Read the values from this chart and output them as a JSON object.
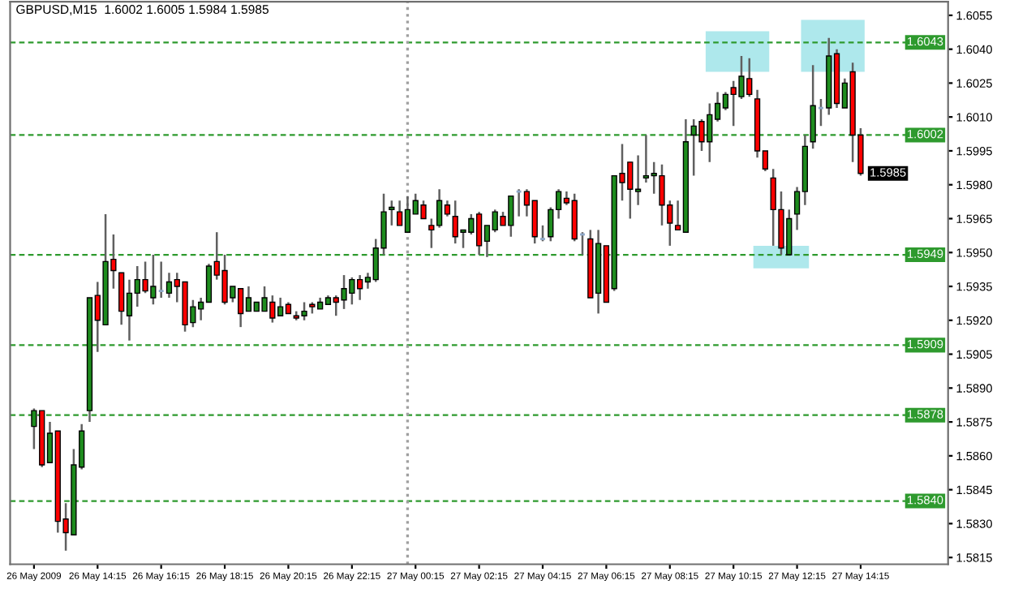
{
  "chart_data": {
    "type": "candlestick",
    "title": "GBPUSD,M15  1.6002 1.6005 1.5984 1.5985",
    "x": [
      "2009-05-26T12:15",
      "2009-05-26T12:30",
      "2009-05-26T12:45",
      "2009-05-26T13:00",
      "2009-05-26T13:15",
      "2009-05-26T13:30",
      "2009-05-26T13:45",
      "2009-05-26T14:00",
      "2009-05-26T14:15",
      "2009-05-26T14:30",
      "2009-05-26T14:45",
      "2009-05-26T15:00",
      "2009-05-26T15:15",
      "2009-05-26T15:30",
      "2009-05-26T15:45",
      "2009-05-26T16:00",
      "2009-05-26T16:15",
      "2009-05-26T16:30",
      "2009-05-26T16:45",
      "2009-05-26T17:00",
      "2009-05-26T17:15",
      "2009-05-26T17:30",
      "2009-05-26T17:45",
      "2009-05-26T18:00",
      "2009-05-26T18:15",
      "2009-05-26T18:30",
      "2009-05-26T18:45",
      "2009-05-26T19:00",
      "2009-05-26T19:15",
      "2009-05-26T19:30",
      "2009-05-26T19:45",
      "2009-05-26T20:00",
      "2009-05-26T20:15",
      "2009-05-26T20:30",
      "2009-05-26T20:45",
      "2009-05-26T21:00",
      "2009-05-26T21:15",
      "2009-05-26T21:30",
      "2009-05-26T21:45",
      "2009-05-26T22:00",
      "2009-05-26T22:15",
      "2009-05-26T22:30",
      "2009-05-26T22:45",
      "2009-05-26T23:00",
      "2009-05-26T23:15",
      "2009-05-26T23:30",
      "2009-05-26T23:45",
      "2009-05-27T00:00",
      "2009-05-27T00:15",
      "2009-05-27T00:30",
      "2009-05-27T00:45",
      "2009-05-27T01:00",
      "2009-05-27T01:15",
      "2009-05-27T01:30",
      "2009-05-27T01:45",
      "2009-05-27T02:00",
      "2009-05-27T02:15",
      "2009-05-27T02:30",
      "2009-05-27T02:45",
      "2009-05-27T03:00",
      "2009-05-27T03:15",
      "2009-05-27T03:30",
      "2009-05-27T03:45",
      "2009-05-27T04:00",
      "2009-05-27T04:15",
      "2009-05-27T04:30",
      "2009-05-27T04:45",
      "2009-05-27T05:00",
      "2009-05-27T05:15",
      "2009-05-27T05:30",
      "2009-05-27T05:45",
      "2009-05-27T06:00",
      "2009-05-27T06:15",
      "2009-05-27T06:30",
      "2009-05-27T06:45",
      "2009-05-27T07:00",
      "2009-05-27T07:15",
      "2009-05-27T07:30",
      "2009-05-27T07:45",
      "2009-05-27T08:00",
      "2009-05-27T08:15",
      "2009-05-27T08:30",
      "2009-05-27T08:45",
      "2009-05-27T09:00",
      "2009-05-27T09:15",
      "2009-05-27T09:30",
      "2009-05-27T09:45",
      "2009-05-27T10:00",
      "2009-05-27T10:15",
      "2009-05-27T10:30",
      "2009-05-27T10:45",
      "2009-05-27T11:00",
      "2009-05-27T11:15",
      "2009-05-27T11:30",
      "2009-05-27T11:45",
      "2009-05-27T12:00",
      "2009-05-27T12:15",
      "2009-05-27T12:30",
      "2009-05-27T12:45",
      "2009-05-27T13:00",
      "2009-05-27T13:15",
      "2009-05-27T13:30",
      "2009-05-27T13:45",
      "2009-05-27T14:00",
      "2009-05-27T14:15"
    ],
    "ohlc": [
      [
        1.5873,
        1.5881,
        1.5863,
        1.588
      ],
      [
        1.588,
        1.588,
        1.5855,
        1.5856
      ],
      [
        1.5857,
        1.5875,
        1.5857,
        1.587
      ],
      [
        1.5871,
        1.5871,
        1.5826,
        1.5831
      ],
      [
        1.5832,
        1.5839,
        1.5818,
        1.5826
      ],
      [
        1.5825,
        1.5863,
        1.5825,
        1.5856
      ],
      [
        1.5855,
        1.5874,
        1.5854,
        1.5871
      ],
      [
        1.588,
        1.593,
        1.5875,
        1.593
      ],
      [
        1.5931,
        1.5937,
        1.5906,
        1.592
      ],
      [
        1.5918,
        1.5967,
        1.5918,
        1.5946
      ],
      [
        1.5947,
        1.5958,
        1.5934,
        1.5942
      ],
      [
        1.5941,
        1.5941,
        1.5918,
        1.5924
      ],
      [
        1.5922,
        1.5938,
        1.5911,
        1.5932
      ],
      [
        1.5932,
        1.5944,
        1.5926,
        1.5938
      ],
      [
        1.5938,
        1.5946,
        1.5932,
        1.5933
      ],
      [
        1.593,
        1.5949,
        1.5927,
        1.5935
      ],
      [
        1.5933,
        1.5946,
        1.593,
        1.5933
      ],
      [
        1.5932,
        1.5941,
        1.593,
        1.5937
      ],
      [
        1.5938,
        1.5941,
        1.5928,
        1.5935
      ],
      [
        1.5937,
        1.5937,
        1.5915,
        1.5918
      ],
      [
        1.5919,
        1.5929,
        1.5917,
        1.5926
      ],
      [
        1.5925,
        1.593,
        1.592,
        1.5928
      ],
      [
        1.5928,
        1.5945,
        1.5928,
        1.5944
      ],
      [
        1.5946,
        1.5959,
        1.5938,
        1.594
      ],
      [
        1.5942,
        1.5949,
        1.5927,
        1.5928
      ],
      [
        1.593,
        1.5935,
        1.5928,
        1.5935
      ],
      [
        1.5934,
        1.5934,
        1.5917,
        1.5923
      ],
      [
        1.5924,
        1.5935,
        1.5924,
        1.593
      ],
      [
        1.5924,
        1.5928,
        1.5924,
        1.5928
      ],
      [
        1.5924,
        1.5935,
        1.5924,
        1.593
      ],
      [
        1.5928,
        1.5931,
        1.5919,
        1.5921
      ],
      [
        1.5922,
        1.593,
        1.5922,
        1.5926
      ],
      [
        1.5927,
        1.5928,
        1.5923,
        1.5923
      ],
      [
        1.5922,
        1.5924,
        1.592,
        1.5921
      ],
      [
        1.5922,
        1.5928,
        1.592,
        1.5924
      ],
      [
        1.5927,
        1.5928,
        1.5923,
        1.5926
      ],
      [
        1.5925,
        1.593,
        1.5925,
        1.5928
      ],
      [
        1.5927,
        1.5931,
        1.5927,
        1.593
      ],
      [
        1.593,
        1.5931,
        1.5922,
        1.5928
      ],
      [
        1.5929,
        1.594,
        1.5925,
        1.5934
      ],
      [
        1.5932,
        1.5939,
        1.5927,
        1.5938
      ],
      [
        1.5938,
        1.594,
        1.5929,
        1.5934
      ],
      [
        1.5937,
        1.5941,
        1.5934,
        1.5939
      ],
      [
        1.5938,
        1.5956,
        1.5937,
        1.5952
      ],
      [
        1.5952,
        1.5976,
        1.5949,
        1.5968
      ],
      [
        1.5969,
        1.5973,
        1.5962,
        1.597
      ],
      [
        1.5968,
        1.5973,
        1.5962,
        1.5962
      ],
      [
        1.5959,
        1.5975,
        1.5959,
        1.5969
      ],
      [
        1.5967,
        1.5976,
        1.5967,
        1.5973
      ],
      [
        1.5971,
        1.5973,
        1.5965,
        1.5965
      ],
      [
        1.5962,
        1.5965,
        1.5952,
        1.596
      ],
      [
        1.5962,
        1.5978,
        1.5961,
        1.5973
      ],
      [
        1.5971,
        1.5973,
        1.5966,
        1.5967
      ],
      [
        1.5966,
        1.5973,
        1.5954,
        1.5957
      ],
      [
        1.5959,
        1.596,
        1.5952,
        1.596
      ],
      [
        1.5959,
        1.5967,
        1.5958,
        1.5965
      ],
      [
        1.5967,
        1.5968,
        1.5949,
        1.5953
      ],
      [
        1.5955,
        1.5962,
        1.5948,
        1.5962
      ],
      [
        1.596,
        1.5969,
        1.5959,
        1.5968
      ],
      [
        1.5966,
        1.5968,
        1.5962,
        1.5962
      ],
      [
        1.5962,
        1.5975,
        1.5957,
        1.5975
      ],
      [
        1.5977,
        1.5978,
        1.5966,
        1.5977
      ],
      [
        1.5977,
        1.5978,
        1.5966,
        1.5971
      ],
      [
        1.5973,
        1.5973,
        1.5954,
        1.5957
      ],
      [
        1.5956,
        1.5962,
        1.5955,
        1.5956
      ],
      [
        1.5957,
        1.597,
        1.5955,
        1.5969
      ],
      [
        1.5969,
        1.5978,
        1.5965,
        1.5977
      ],
      [
        1.5974,
        1.5977,
        1.5971,
        1.5972
      ],
      [
        1.5973,
        1.5976,
        1.5955,
        1.5956
      ],
      [
        1.5958,
        1.5959,
        1.5949,
        1.5958
      ],
      [
        1.5956,
        1.596,
        1.593,
        1.593
      ],
      [
        1.5932,
        1.596,
        1.5923,
        1.5954
      ],
      [
        1.5953,
        1.5953,
        1.5928,
        1.5928
      ],
      [
        1.5934,
        1.5984,
        1.5933,
        1.5984
      ],
      [
        1.5985,
        1.5998,
        1.5973,
        1.5981
      ],
      [
        1.599,
        1.599,
        1.5965,
        1.5978
      ],
      [
        1.5977,
        1.5993,
        1.5971,
        1.5978
      ],
      [
        1.5983,
        1.6002,
        1.5981,
        1.5984
      ],
      [
        1.5984,
        1.599,
        1.5976,
        1.5985
      ],
      [
        1.5984,
        1.5989,
        1.5962,
        1.5971
      ],
      [
        1.5971,
        1.5973,
        1.5953,
        1.5963
      ],
      [
        1.5962,
        1.5973,
        1.596,
        1.596
      ],
      [
        1.5959,
        1.6009,
        1.5959,
        1.5999
      ],
      [
        1.6002,
        1.6009,
        1.5984,
        1.6006
      ],
      [
        1.6008,
        1.6009,
        1.5995,
        1.5999
      ],
      [
        1.5999,
        1.6016,
        1.599,
        1.6011
      ],
      [
        1.6009,
        1.6021,
        1.6008,
        1.6016
      ],
      [
        1.6014,
        1.6021,
        1.6013,
        1.602
      ],
      [
        1.6023,
        1.6026,
        1.6006,
        1.602
      ],
      [
        1.6019,
        1.6037,
        1.6018,
        1.6028
      ],
      [
        1.6027,
        1.6036,
        1.6019,
        1.602
      ],
      [
        1.6018,
        1.6022,
        1.5992,
        1.5995
      ],
      [
        1.5995,
        1.5995,
        1.5986,
        1.5987
      ],
      [
        1.5983,
        1.5987,
        1.5953,
        1.5969
      ],
      [
        1.5969,
        1.5977,
        1.5949,
        1.5952
      ],
      [
        1.5949,
        1.5969,
        1.5949,
        1.5965
      ],
      [
        1.5967,
        1.5979,
        1.596,
        1.5977
      ],
      [
        1.5977,
        1.6002,
        1.5971,
        1.5997
      ],
      [
        1.5999,
        1.6033,
        1.5996,
        1.6015
      ],
      [
        1.6014,
        1.6018,
        1.6006,
        1.6014
      ],
      [
        1.6014,
        1.6045,
        1.6011,
        1.6037
      ],
      [
        1.6038,
        1.604,
        1.6014,
        1.6016
      ],
      [
        1.6014,
        1.6027,
        1.6014,
        1.6025
      ],
      [
        1.603,
        1.6034,
        1.599,
        1.6002
      ],
      [
        1.6002,
        1.6005,
        1.5984,
        1.5985
      ]
    ],
    "colors": [
      "#1e8c1e",
      "#ff0000",
      "#1e8c1e",
      "#ff0000",
      "#ff0000",
      "#1e8c1e",
      "#1e8c1e",
      "#1e8c1e",
      "#ff0000",
      "#1e8c1e",
      "#ff0000",
      "#ff0000",
      "#1e8c1e",
      "#1e8c1e",
      "#ff0000",
      "#1e8c1e",
      "#8fa8c8",
      "#1e8c1e",
      "#ff0000",
      "#ff0000",
      "#1e8c1e",
      "#1e8c1e",
      "#1e8c1e",
      "#ff0000",
      "#ff0000",
      "#1e8c1e",
      "#ff0000",
      "#1e8c1e",
      "#1e8c1e",
      "#1e8c1e",
      "#ff0000",
      "#1e8c1e",
      "#ff0000",
      "#ff0000",
      "#1e8c1e",
      "#ff0000",
      "#1e8c1e",
      "#1e8c1e",
      "#ff0000",
      "#1e8c1e",
      "#1e8c1e",
      "#ff0000",
      "#1e8c1e",
      "#1e8c1e",
      "#1e8c1e",
      "#1e8c1e",
      "#ff0000",
      "#1e8c1e",
      "#1e8c1e",
      "#ff0000",
      "#ff0000",
      "#1e8c1e",
      "#ff0000",
      "#ff0000",
      "#1e8c1e",
      "#1e8c1e",
      "#ff0000",
      "#1e8c1e",
      "#1e8c1e",
      "#ff0000",
      "#1e8c1e",
      "#8fa8c8",
      "#ff0000",
      "#ff0000",
      "#8fa8c8",
      "#1e8c1e",
      "#1e8c1e",
      "#ff0000",
      "#ff0000",
      "#8fa8c8",
      "#ff0000",
      "#1e8c1e",
      "#ff0000",
      "#1e8c1e",
      "#ff0000",
      "#ff0000",
      "#1e8c1e",
      "#1e8c1e",
      "#1e8c1e",
      "#ff0000",
      "#ff0000",
      "#ff0000",
      "#1e8c1e",
      "#1e8c1e",
      "#ff0000",
      "#1e8c1e",
      "#1e8c1e",
      "#1e8c1e",
      "#ff0000",
      "#1e8c1e",
      "#ff0000",
      "#ff0000",
      "#ff0000",
      "#ff0000",
      "#ff0000",
      "#1e8c1e",
      "#1e8c1e",
      "#1e8c1e",
      "#1e8c1e",
      "#8fa8c8",
      "#1e8c1e",
      "#ff0000",
      "#1e8c1e",
      "#ff0000",
      "#ff0000"
    ],
    "xlim": [
      "2009-05-26T11:30",
      "2009-05-27T17:00"
    ],
    "xticks": [
      {
        "value": "2009-05-26T12:15",
        "label": "26 May 2009"
      },
      {
        "value": "2009-05-26T14:15",
        "label": "26 May 14:15"
      },
      {
        "value": "2009-05-26T16:15",
        "label": "26 May 16:15"
      },
      {
        "value": "2009-05-26T18:15",
        "label": "26 May 18:15"
      },
      {
        "value": "2009-05-26T20:15",
        "label": "26 May 20:15"
      },
      {
        "value": "2009-05-26T22:15",
        "label": "26 May 22:15"
      },
      {
        "value": "2009-05-27T00:15",
        "label": "27 May 00:15"
      },
      {
        "value": "2009-05-27T02:15",
        "label": "27 May 02:15"
      },
      {
        "value": "2009-05-27T04:15",
        "label": "27 May 04:15"
      },
      {
        "value": "2009-05-27T06:15",
        "label": "27 May 06:15"
      },
      {
        "value": "2009-05-27T08:15",
        "label": "27 May 08:15"
      },
      {
        "value": "2009-05-27T10:15",
        "label": "27 May 10:15"
      },
      {
        "value": "2009-05-27T12:15",
        "label": "27 May 12:15"
      },
      {
        "value": "2009-05-27T14:15",
        "label": "27 May 14:15"
      }
    ],
    "ylim": [
      1.5812,
      1.6061
    ],
    "yticks": [
      {
        "value": 1.6055,
        "label": "1.6055"
      },
      {
        "value": 1.604,
        "label": "1.6040"
      },
      {
        "value": 1.6025,
        "label": "1.6025"
      },
      {
        "value": 1.601,
        "label": "1.6010"
      },
      {
        "value": 1.5995,
        "label": "1.5995"
      },
      {
        "value": 1.598,
        "label": "1.5980"
      },
      {
        "value": 1.5965,
        "label": "1.5965"
      },
      {
        "value": 1.595,
        "label": "1.5950"
      },
      {
        "value": 1.5935,
        "label": "1.5935"
      },
      {
        "value": 1.592,
        "label": "1.5920"
      },
      {
        "value": 1.5905,
        "label": "1.5905"
      },
      {
        "value": 1.589,
        "label": "1.5890"
      },
      {
        "value": 1.5875,
        "label": "1.5875"
      },
      {
        "value": 1.586,
        "label": "1.5860"
      },
      {
        "value": 1.5845,
        "label": "1.5845"
      },
      {
        "value": 1.583,
        "label": "1.5830"
      },
      {
        "value": 1.5815,
        "label": "1.5815"
      }
    ],
    "ref_lines": [
      {
        "axis": "y",
        "value": 1.6043,
        "label": "1.6043",
        "color": "#2e9a2e",
        "line_style": "dashed"
      },
      {
        "axis": "y",
        "value": 1.6002,
        "label": "1.6002",
        "color": "#2e9a2e",
        "line_style": "dashed"
      },
      {
        "axis": "y",
        "value": 1.5949,
        "label": "1.5949",
        "color": "#2e9a2e",
        "line_style": "dashed"
      },
      {
        "axis": "y",
        "value": 1.5909,
        "label": "1.5909",
        "color": "#2e9a2e",
        "line_style": "dashed"
      },
      {
        "axis": "y",
        "value": 1.5878,
        "label": "1.5878",
        "color": "#2e9a2e",
        "line_style": "dashed"
      },
      {
        "axis": "y",
        "value": 1.584,
        "label": "1.5840",
        "color": "#2e9a2e",
        "line_style": "dashed"
      },
      {
        "axis": "x",
        "value": "2009-05-27T00:00",
        "color": "#a0a0a0",
        "line_style": "dotted"
      }
    ],
    "annotations": [
      {
        "text": "1.5985",
        "x": "2009-05-27T14:15",
        "y": 1.5985
      }
    ],
    "grid": false
  }
}
